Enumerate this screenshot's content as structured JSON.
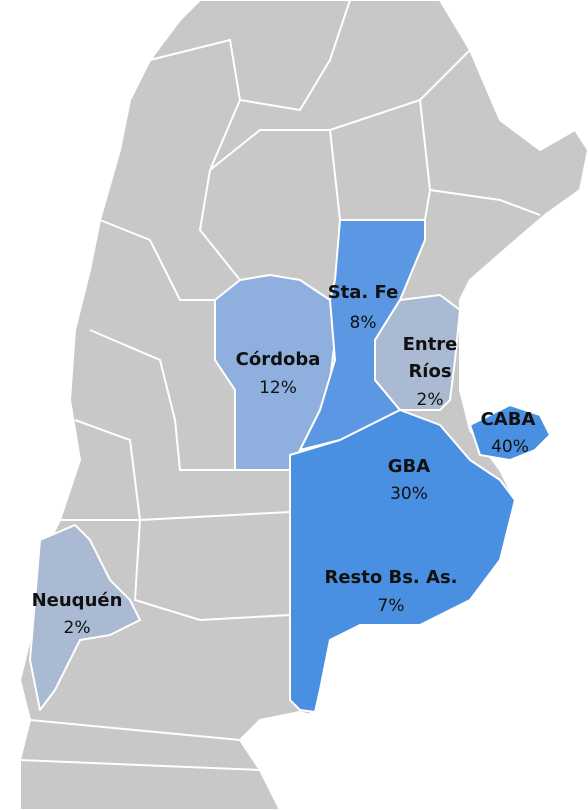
{
  "regions": [
    {
      "lines": [
        "Sta. Fe"
      ],
      "value": 8,
      "value_label": "8%",
      "color": "#5b97e3"
    },
    {
      "lines": [
        "Córdoba"
      ],
      "value": 12,
      "value_label": "12%",
      "color": "#8fb0de"
    },
    {
      "lines": [
        "Entre",
        "Ríos"
      ],
      "value": 2,
      "value_label": "2%",
      "color": "#a9bad2"
    },
    {
      "lines": [
        "CABA"
      ],
      "value": 40,
      "value_label": "40%",
      "color": "#4a90e2"
    },
    {
      "lines": [
        "GBA"
      ],
      "value": 30,
      "value_label": "30%",
      "color": "#4a90e2"
    },
    {
      "lines": [
        "Resto Bs. As."
      ],
      "value": 7,
      "value_label": "7%",
      "color": "#4a90e2"
    },
    {
      "lines": [
        "Neuquén"
      ],
      "value": 2,
      "value_label": "2%",
      "color": "#a9bad2"
    }
  ]
}
